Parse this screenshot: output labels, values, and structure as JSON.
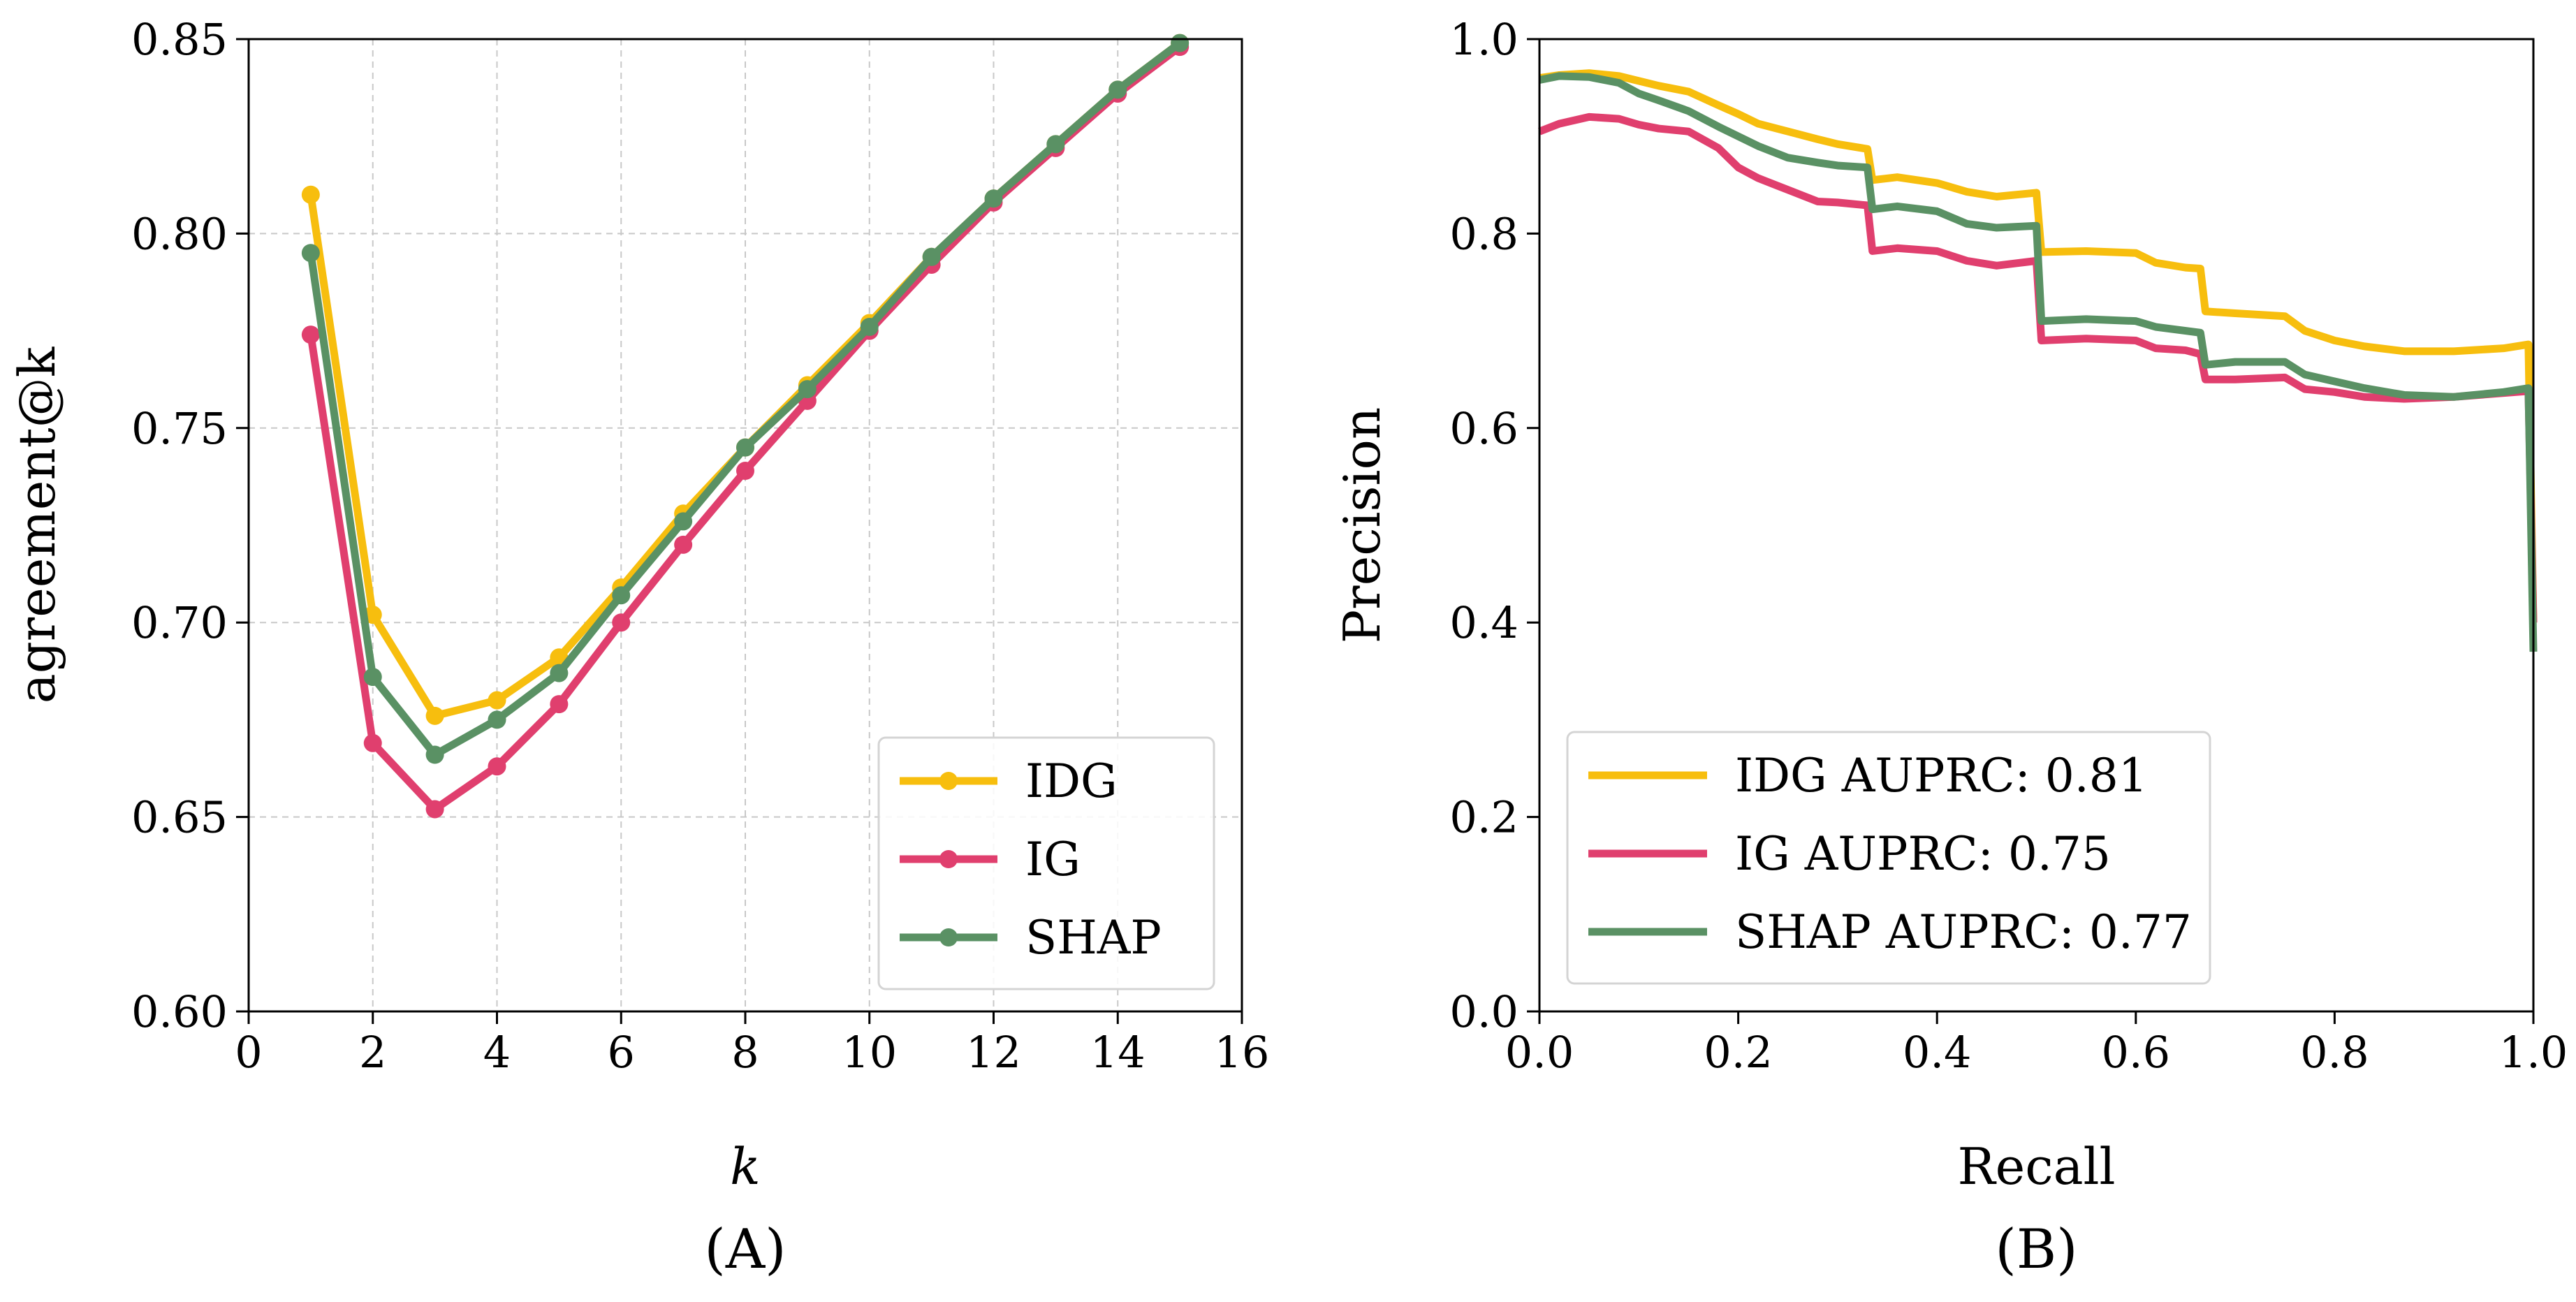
{
  "figure": {
    "panel_a_label": "(A)",
    "panel_b_label": "(B)"
  },
  "colors": {
    "IDG": "#F7BE0E",
    "IG": "#E03F6E",
    "SHAP": "#5A9164"
  },
  "chart_data": [
    {
      "type": "line",
      "markers": true,
      "xlabel": "k",
      "ylabel": "agreement@k",
      "xlim": [
        0,
        16
      ],
      "ylim": [
        0.6,
        0.85
      ],
      "xticks": [
        0,
        2,
        4,
        6,
        8,
        10,
        12,
        14,
        16
      ],
      "xtick_labels": [
        "0",
        "2",
        "4",
        "6",
        "8",
        "10",
        "12",
        "14",
        "16"
      ],
      "yticks": [
        0.6,
        0.65,
        0.7,
        0.75,
        0.8,
        0.85
      ],
      "ytick_labels": [
        "0.60",
        "0.65",
        "0.70",
        "0.75",
        "0.80",
        "0.85"
      ],
      "grid": true,
      "legend_position": "bottom-right",
      "x": [
        1,
        2,
        3,
        4,
        5,
        6,
        7,
        8,
        9,
        10,
        11,
        12,
        13,
        14,
        15
      ],
      "series": [
        {
          "name": "IDG",
          "color": "#F7BE0E",
          "values": [
            0.81,
            0.702,
            0.676,
            0.68,
            0.691,
            0.709,
            0.728,
            0.745,
            0.761,
            0.777,
            0.794,
            0.809,
            0.823,
            0.837,
            0.849
          ]
        },
        {
          "name": "IG",
          "color": "#E03F6E",
          "values": [
            0.774,
            0.669,
            0.652,
            0.663,
            0.679,
            0.7,
            0.72,
            0.739,
            0.757,
            0.775,
            0.792,
            0.808,
            0.822,
            0.836,
            0.848
          ]
        },
        {
          "name": "SHAP",
          "color": "#5A9164",
          "values": [
            0.795,
            0.686,
            0.666,
            0.675,
            0.687,
            0.707,
            0.726,
            0.745,
            0.76,
            0.776,
            0.794,
            0.809,
            0.823,
            0.837,
            0.849
          ]
        }
      ]
    },
    {
      "type": "line",
      "step": true,
      "xlabel": "Recall",
      "ylabel": "Precision",
      "xlim": [
        0,
        1
      ],
      "ylim": [
        0,
        1
      ],
      "xticks": [
        0,
        0.2,
        0.4,
        0.6,
        0.8,
        1.0
      ],
      "xtick_labels": [
        "0.0",
        "0.2",
        "0.4",
        "0.6",
        "0.8",
        "1.0"
      ],
      "yticks": [
        0,
        0.2,
        0.4,
        0.6,
        0.8,
        1.0
      ],
      "ytick_labels": [
        "0.0",
        "0.2",
        "0.4",
        "0.6",
        "0.8",
        "1.0"
      ],
      "grid": false,
      "legend_position": "bottom-left",
      "series": [
        {
          "name": "IDG AUPRC: 0.81",
          "color": "#F7BE0E",
          "x": [
            0.0,
            0.02,
            0.05,
            0.08,
            0.1,
            0.12,
            0.15,
            0.18,
            0.2,
            0.22,
            0.25,
            0.28,
            0.3,
            0.33,
            0.335,
            0.36,
            0.4,
            0.43,
            0.46,
            0.5,
            0.505,
            0.55,
            0.6,
            0.62,
            0.65,
            0.665,
            0.67,
            0.7,
            0.75,
            0.77,
            0.8,
            0.83,
            0.87,
            0.92,
            0.97,
            0.995,
            1.0
          ],
          "y": [
            0.96,
            0.963,
            0.965,
            0.962,
            0.957,
            0.952,
            0.946,
            0.932,
            0.923,
            0.913,
            0.905,
            0.897,
            0.892,
            0.887,
            0.855,
            0.858,
            0.852,
            0.843,
            0.838,
            0.842,
            0.781,
            0.782,
            0.78,
            0.77,
            0.765,
            0.764,
            0.72,
            0.718,
            0.715,
            0.7,
            0.69,
            0.684,
            0.679,
            0.679,
            0.682,
            0.686,
            0.4
          ]
        },
        {
          "name": "IG AUPRC: 0.75",
          "color": "#E03F6E",
          "x": [
            0.0,
            0.02,
            0.05,
            0.08,
            0.1,
            0.12,
            0.15,
            0.18,
            0.2,
            0.22,
            0.25,
            0.28,
            0.3,
            0.33,
            0.335,
            0.36,
            0.4,
            0.43,
            0.46,
            0.5,
            0.505,
            0.55,
            0.6,
            0.62,
            0.65,
            0.665,
            0.67,
            0.7,
            0.75,
            0.77,
            0.8,
            0.83,
            0.87,
            0.92,
            0.97,
            0.995,
            1.0
          ],
          "y": [
            0.905,
            0.913,
            0.92,
            0.918,
            0.912,
            0.908,
            0.905,
            0.888,
            0.868,
            0.857,
            0.845,
            0.833,
            0.832,
            0.829,
            0.782,
            0.785,
            0.782,
            0.772,
            0.767,
            0.772,
            0.69,
            0.692,
            0.69,
            0.682,
            0.68,
            0.676,
            0.65,
            0.65,
            0.652,
            0.64,
            0.637,
            0.632,
            0.63,
            0.632,
            0.636,
            0.638,
            0.4
          ]
        },
        {
          "name": "SHAP AUPRC: 0.77",
          "color": "#5A9164",
          "x": [
            0.0,
            0.02,
            0.05,
            0.08,
            0.1,
            0.12,
            0.15,
            0.18,
            0.2,
            0.22,
            0.25,
            0.28,
            0.3,
            0.33,
            0.335,
            0.36,
            0.4,
            0.43,
            0.46,
            0.5,
            0.505,
            0.55,
            0.6,
            0.62,
            0.65,
            0.665,
            0.67,
            0.7,
            0.75,
            0.77,
            0.8,
            0.83,
            0.87,
            0.92,
            0.97,
            0.995,
            1.0
          ],
          "y": [
            0.958,
            0.962,
            0.961,
            0.955,
            0.944,
            0.937,
            0.926,
            0.91,
            0.9,
            0.89,
            0.878,
            0.873,
            0.87,
            0.868,
            0.825,
            0.828,
            0.823,
            0.81,
            0.806,
            0.808,
            0.71,
            0.712,
            0.71,
            0.704,
            0.7,
            0.698,
            0.665,
            0.668,
            0.668,
            0.655,
            0.648,
            0.641,
            0.634,
            0.632,
            0.637,
            0.641,
            0.37
          ]
        }
      ]
    }
  ]
}
